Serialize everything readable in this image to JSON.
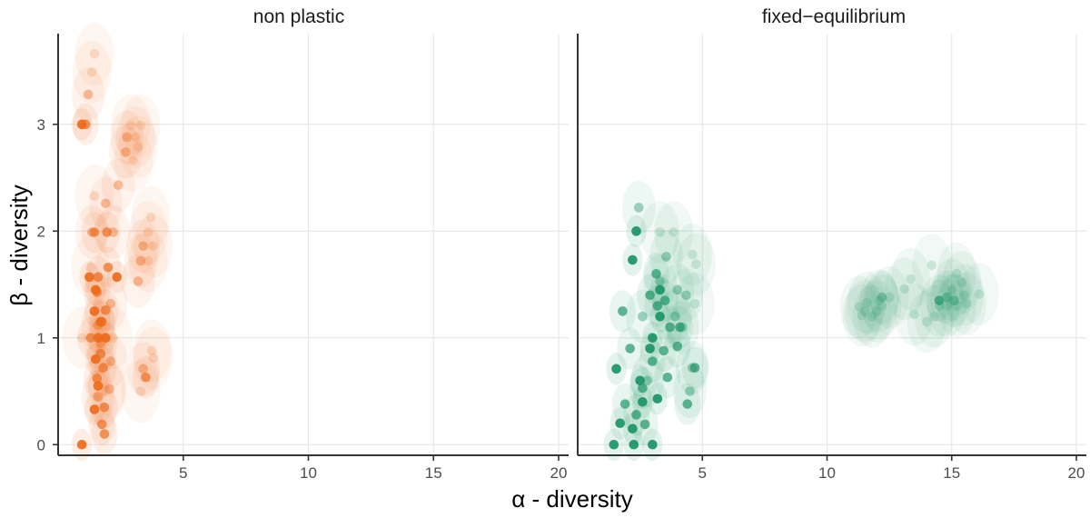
{
  "chart_data": {
    "type": "scatter",
    "xlabel": "α - diversity",
    "ylabel": "β - diversity",
    "xlim": [
      0.0,
      20.4
    ],
    "ylim": [
      -0.1,
      3.85
    ],
    "x_ticks": [
      5,
      10,
      15,
      20
    ],
    "y_ticks": [
      0,
      1,
      2,
      3
    ],
    "grid": true,
    "legend": "none",
    "panels": [
      {
        "title": "non plastic",
        "color": "#EE6A1A",
        "series": [
          {
            "level": 0.18,
            "points": [
              [
                1.45,
                3.66
              ],
              [
                1.35,
                3.49
              ],
              [
                2.9,
                2.99
              ],
              [
                3.3,
                2.99
              ],
              [
                3.1,
                2.88
              ],
              [
                3.2,
                2.79
              ],
              [
                3.0,
                2.66
              ],
              [
                1.45,
                2.33
              ],
              [
                3.7,
                2.13
              ],
              [
                3.6,
                1.99
              ],
              [
                3.8,
                1.86
              ],
              [
                3.6,
                1.72
              ],
              [
                3.75,
                0.88
              ],
              [
                3.8,
                0.81
              ],
              [
                3.3,
                0.5
              ],
              [
                0.95,
                1.0
              ],
              [
                1.3,
                1.66
              ],
              [
                2.2,
                1.0
              ],
              [
                1.9,
                0.5
              ]
            ]
          },
          {
            "level": 0.4,
            "points": [
              [
                1.2,
                3.28
              ],
              [
                2.75,
                2.88
              ],
              [
                2.7,
                2.74
              ],
              [
                2.4,
                2.43
              ],
              [
                1.9,
                2.26
              ],
              [
                1.35,
                1.99
              ],
              [
                2.2,
                1.99
              ],
              [
                3.4,
                1.86
              ],
              [
                3.3,
                1.72
              ],
              [
                3.2,
                1.53
              ],
              [
                2.1,
                1.32
              ],
              [
                1.6,
                1.12
              ],
              [
                1.7,
                0.95
              ],
              [
                2.1,
                0.78
              ],
              [
                3.4,
                0.71
              ],
              [
                1.6,
                0.45
              ],
              [
                2.05,
                0.52
              ]
            ]
          },
          {
            "level": 0.68,
            "points": [
              [
                1.1,
                3.0
              ],
              [
                1.45,
                1.99
              ],
              [
                1.95,
                1.99
              ],
              [
                2.0,
                1.66
              ],
              [
                1.6,
                1.57
              ],
              [
                1.55,
                1.43
              ],
              [
                1.9,
                1.26
              ],
              [
                1.75,
                1.15
              ],
              [
                1.7,
                0.85
              ],
              [
                1.55,
                0.62
              ],
              [
                1.85,
                0.35
              ],
              [
                3.5,
                0.63
              ],
              [
                1.75,
                0.19
              ],
              [
                1.85,
                0.1
              ],
              [
                1.3,
                1.0
              ],
              [
                1.8,
                0.72
              ]
            ]
          },
          {
            "level": 0.92,
            "points": [
              [
                0.95,
                3.0
              ],
              [
                1.25,
                1.57
              ],
              [
                2.35,
                1.57
              ],
              [
                1.5,
                1.45
              ],
              [
                1.45,
                1.25
              ],
              [
                1.7,
                1.15
              ],
              [
                1.6,
                1.0
              ],
              [
                1.9,
                1.0
              ],
              [
                1.5,
                0.8
              ],
              [
                1.45,
                0.33
              ],
              [
                0.95,
                0.0
              ],
              [
                1.6,
                0.55
              ]
            ]
          }
        ]
      },
      {
        "title": "fixed−equilibrium",
        "color": "#1B9466",
        "series": [
          {
            "level": 0.18,
            "points": [
              [
                3.3,
                1.99
              ],
              [
                3.85,
                1.99
              ],
              [
                4.6,
                1.78
              ],
              [
                4.75,
                1.69
              ],
              [
                4.7,
                1.32
              ],
              [
                11.3,
                1.29
              ],
              [
                11.4,
                1.21
              ],
              [
                11.6,
                1.33
              ],
              [
                11.8,
                1.2
              ],
              [
                12.0,
                1.25
              ],
              [
                12.2,
                1.3
              ],
              [
                12.5,
                1.38
              ],
              [
                13.1,
                1.46
              ],
              [
                13.35,
                1.55
              ],
              [
                13.5,
                1.22
              ],
              [
                14.0,
                1.15
              ],
              [
                14.2,
                1.68
              ],
              [
                14.3,
                1.2
              ],
              [
                14.5,
                1.3
              ],
              [
                14.8,
                1.3
              ],
              [
                15.0,
                1.45
              ],
              [
                15.2,
                1.3
              ],
              [
                15.2,
                1.6
              ],
              [
                15.4,
                1.52
              ],
              [
                15.5,
                1.4
              ],
              [
                15.6,
                1.32
              ],
              [
                16.1,
                1.41
              ],
              [
                12.1,
                1.35
              ],
              [
                11.5,
                1.25
              ]
            ]
          },
          {
            "level": 0.4,
            "points": [
              [
                2.45,
                2.22
              ],
              [
                3.55,
                1.76
              ],
              [
                3.3,
                1.53
              ],
              [
                4.0,
                1.45
              ],
              [
                4.35,
                1.4
              ],
              [
                4.6,
                0.72
              ],
              [
                4.5,
                0.5
              ],
              [
                2.6,
                1.2
              ],
              [
                3.9,
                1.2
              ],
              [
                2.8,
                0.6
              ],
              [
                12.2,
                1.38
              ],
              [
                14.8,
                1.38
              ],
              [
                15.1,
                1.35
              ],
              [
                4.2,
                1.1
              ]
            ]
          },
          {
            "level": 0.68,
            "points": [
              [
                2.9,
                1.4
              ],
              [
                3.2,
                1.3
              ],
              [
                3.5,
                1.35
              ],
              [
                3.7,
                1.1
              ],
              [
                4.1,
                1.1
              ],
              [
                4.0,
                0.92
              ],
              [
                3.45,
                0.88
              ],
              [
                3.0,
                0.78
              ],
              [
                2.6,
                0.53
              ],
              [
                4.4,
                0.38
              ],
              [
                4.7,
                0.72
              ],
              [
                1.8,
                1.25
              ],
              [
                2.1,
                0.9
              ],
              [
                1.9,
                0.38
              ],
              [
                2.35,
                0.28
              ],
              [
                2.7,
                0.19
              ],
              [
                3.6,
                0.63
              ],
              [
                14.5,
                1.35
              ],
              [
                3.15,
                1.6
              ]
            ]
          },
          {
            "level": 0.92,
            "points": [
              [
                2.2,
                1.73
              ],
              [
                2.35,
                2.0
              ],
              [
                1.55,
                0.71
              ],
              [
                1.7,
                0.2
              ],
              [
                1.45,
                0.0
              ],
              [
                2.25,
                0.0
              ],
              [
                3.0,
                0.0
              ],
              [
                3.2,
                0.43
              ],
              [
                3.0,
                1.0
              ],
              [
                3.3,
                1.2
              ],
              [
                2.9,
                0.9
              ],
              [
                2.5,
                0.6
              ],
              [
                2.6,
                0.4
              ],
              [
                2.2,
                0.15
              ],
              [
                3.3,
                1.45
              ]
            ]
          }
        ]
      }
    ]
  },
  "facets": {
    "left_title": "non plastic",
    "right_title": "fixed−equilibrium"
  },
  "axes": {
    "x_title": "α - diversity",
    "y_title": "β - diversity"
  }
}
